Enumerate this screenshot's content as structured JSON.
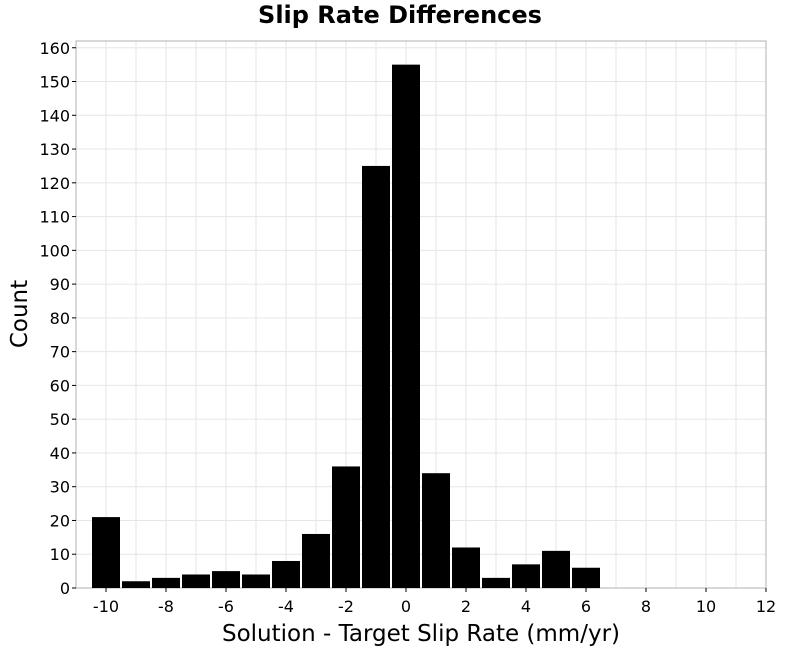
{
  "chart_data": {
    "type": "bar",
    "title": "Slip Rate Differences",
    "xlabel": "Solution - Target Slip Rate (mm/yr)",
    "ylabel": "Count",
    "xlim": [
      -11,
      12
    ],
    "ylim": [
      0,
      162
    ],
    "xticks": [
      -10,
      -8,
      -6,
      -4,
      -2,
      0,
      2,
      4,
      6,
      8,
      10,
      12
    ],
    "yticks": [
      0,
      10,
      20,
      30,
      40,
      50,
      60,
      70,
      80,
      90,
      100,
      110,
      120,
      130,
      140,
      150,
      160
    ],
    "bin_width": 1,
    "bins": [
      {
        "x": -10,
        "value": 21
      },
      {
        "x": -9,
        "value": 2
      },
      {
        "x": -8,
        "value": 3
      },
      {
        "x": -7,
        "value": 4
      },
      {
        "x": -6,
        "value": 5
      },
      {
        "x": -5,
        "value": 4
      },
      {
        "x": -4,
        "value": 8
      },
      {
        "x": -3,
        "value": 16
      },
      {
        "x": -2,
        "value": 36
      },
      {
        "x": -1,
        "value": 125
      },
      {
        "x": 0,
        "value": 155
      },
      {
        "x": 1,
        "value": 34
      },
      {
        "x": 2,
        "value": 12
      },
      {
        "x": 3,
        "value": 3
      },
      {
        "x": 4,
        "value": 7
      },
      {
        "x": 5,
        "value": 11
      },
      {
        "x": 6,
        "value": 6
      }
    ],
    "bar_color": "#000000",
    "grid": true,
    "legend": "none"
  }
}
